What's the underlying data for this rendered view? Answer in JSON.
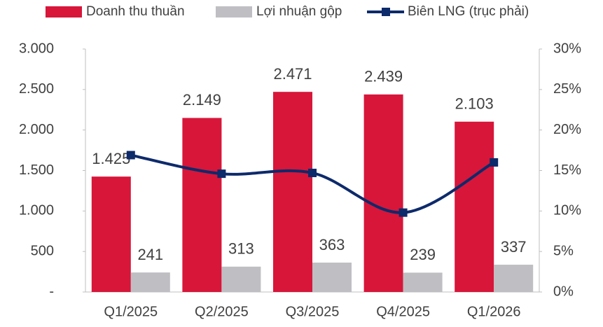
{
  "chart_data": {
    "type": "bar_line",
    "categories": [
      "Q1/2025",
      "Q2/2025",
      "Q3/2025",
      "Q4/2025",
      "Q1/2026"
    ],
    "series": [
      {
        "name": "Doanh thu thuần",
        "color": "#d7163a",
        "values": [
          1425,
          2149,
          2471,
          2439,
          2103
        ],
        "value_labels": [
          "1.425",
          "2.149",
          "2.471",
          "2.439",
          "2.103"
        ]
      },
      {
        "name": "Lợi nhuận gộp",
        "color": "#bfbfc3",
        "values": [
          241,
          313,
          363,
          239,
          337
        ]
      },
      {
        "name": "Biên LNG (trục phải)",
        "color": "#0d2a6b",
        "axis": "y2",
        "values": [
          16.9,
          14.6,
          14.7,
          9.8,
          16.0
        ]
      }
    ],
    "ylim": [
      0,
      3000
    ],
    "yticks": [
      {
        "value": 0,
        "label": "-"
      },
      500,
      {
        "value": 1000,
        "label": "1.000"
      },
      {
        "value": 1500,
        "label": "1.500"
      },
      {
        "value": 2000,
        "label": "2.000"
      },
      {
        "value": 2500,
        "label": "2.500"
      },
      {
        "value": 3000,
        "label": "3.000"
      }
    ],
    "y2lim": [
      0,
      30
    ],
    "y2ticks": [
      {
        "value": 0,
        "label": "0%"
      },
      {
        "value": 5,
        "label": "5%"
      },
      {
        "value": 10,
        "label": "10%"
      },
      {
        "value": 15,
        "label": "15%"
      },
      {
        "value": 20,
        "label": "20%"
      },
      {
        "value": 25,
        "label": "25%"
      },
      {
        "value": 30,
        "label": "30%"
      }
    ],
    "legend": "top"
  }
}
